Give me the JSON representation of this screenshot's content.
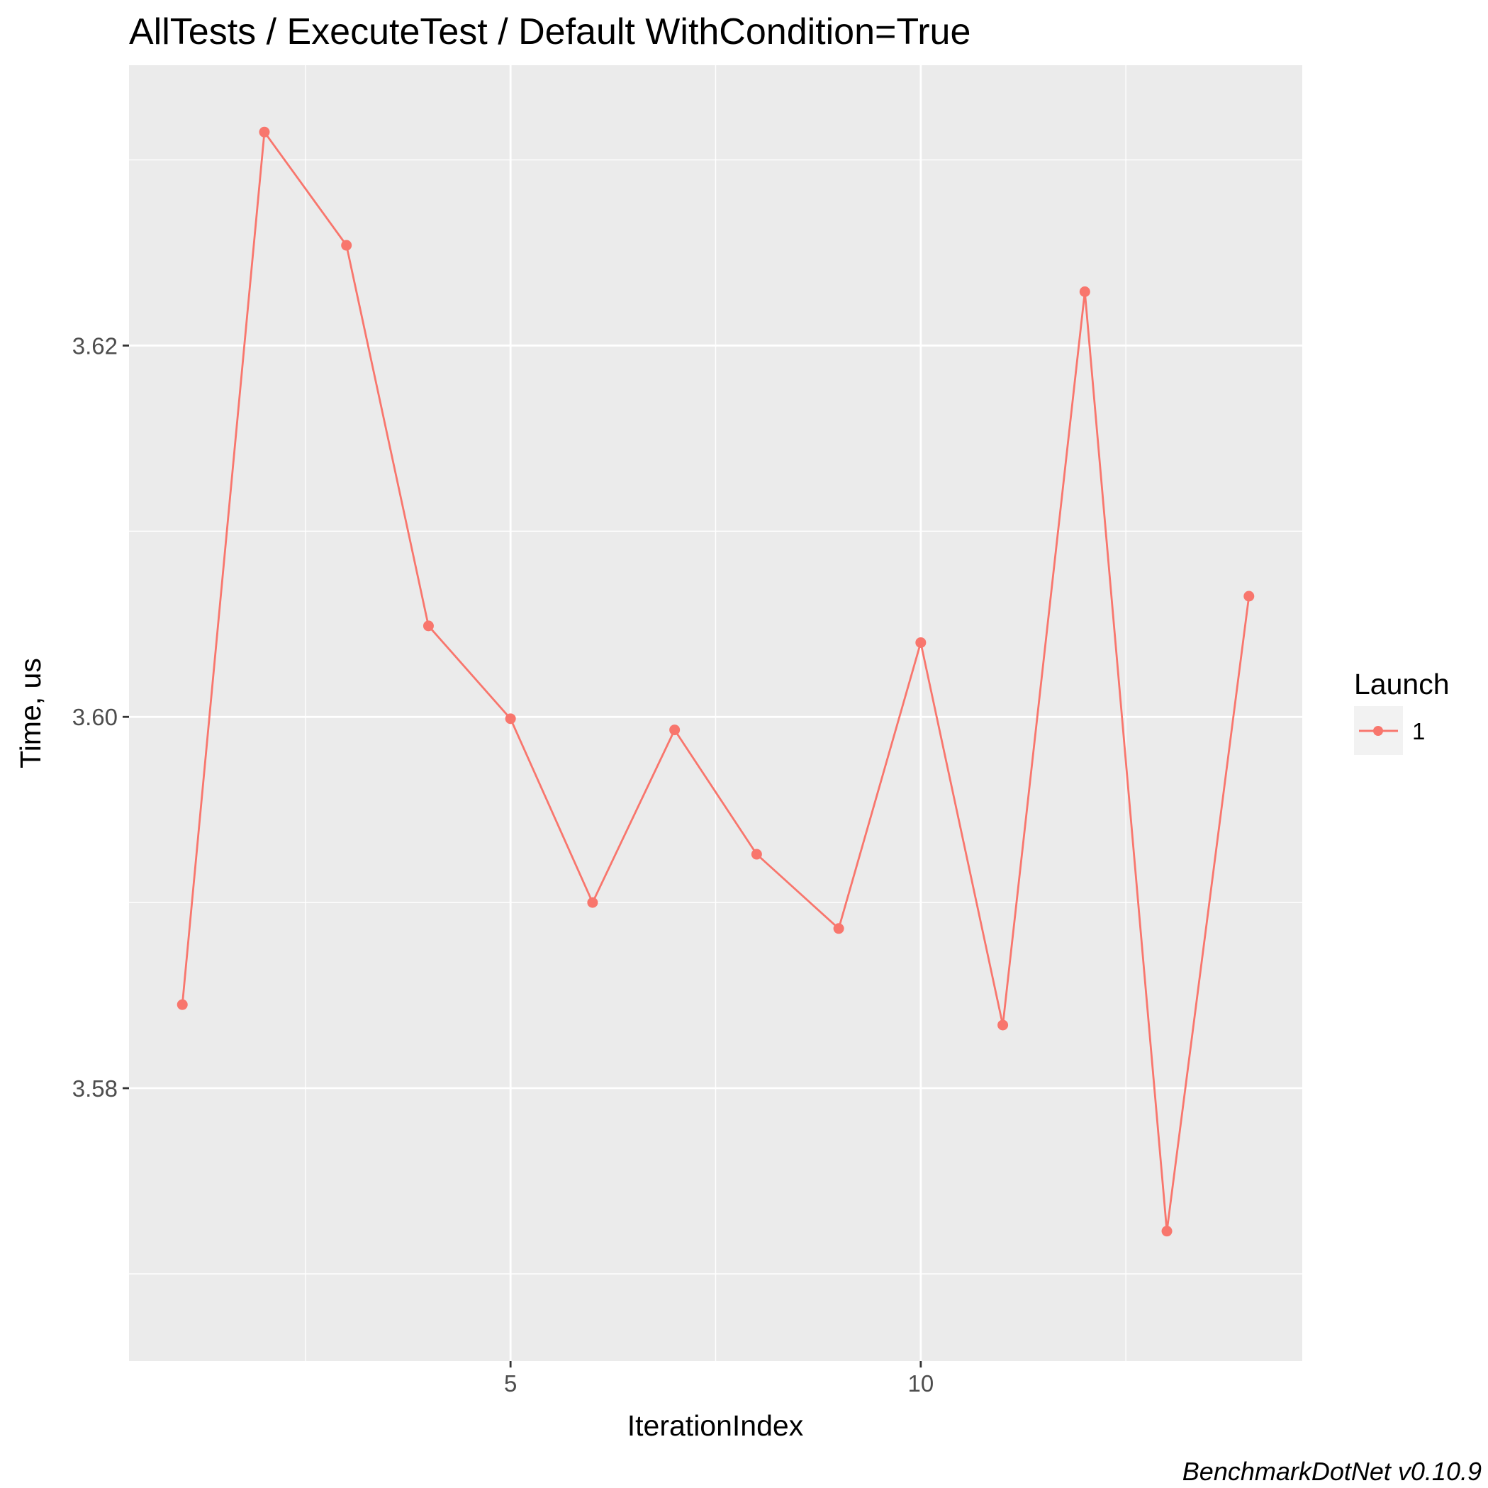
{
  "chart_data": {
    "type": "line",
    "title": "AllTests / ExecuteTest / Default WithCondition=True",
    "xlabel": "IterationIndex",
    "ylabel": "Time, us",
    "caption": "BenchmarkDotNet v0.10.9",
    "xlim": [
      0.35,
      14.65
    ],
    "ylim": [
      3.5653,
      3.6351
    ],
    "x_ticks": [
      5,
      10
    ],
    "y_ticks": [
      3.58,
      3.6,
      3.62
    ],
    "x_tick_labels": [
      "5",
      "10"
    ],
    "y_tick_labels": [
      "3.58",
      "3.60",
      "3.62"
    ],
    "grid": true,
    "legend": {
      "title": "Launch",
      "position": "right"
    },
    "series": [
      {
        "name": "1",
        "color": "#F8766D",
        "x": [
          1,
          2,
          3,
          4,
          5,
          6,
          7,
          8,
          9,
          10,
          11,
          12,
          13,
          14
        ],
        "y": [
          3.5845,
          3.6315,
          3.6254,
          3.6049,
          3.5999,
          3.59,
          3.5993,
          3.5926,
          3.5886,
          3.604,
          3.5834,
          3.6229,
          3.5723,
          3.6065
        ]
      }
    ]
  }
}
